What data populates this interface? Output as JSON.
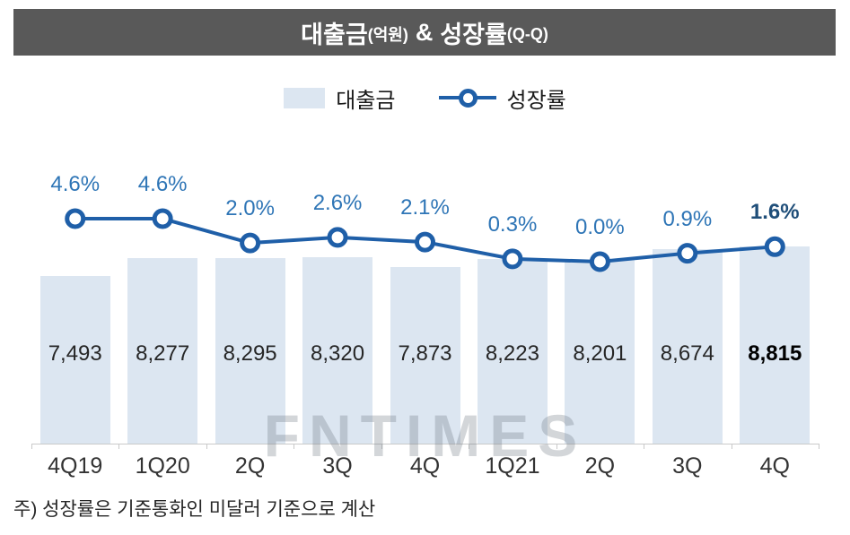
{
  "header": {
    "part1": "대출금",
    "part1_sub": "(억원)",
    "amp": "&",
    "part2": "성장률",
    "part2_sub": "(Q-Q)"
  },
  "legend": {
    "bar_label": "대출금",
    "line_label": "성장률"
  },
  "watermark": "FNTIMES",
  "footnote": "주) 성장률은 기준통화인 미달러 기준으로 계산",
  "chart_data": {
    "type": "bar+line",
    "title": "대출금(억원) & 성장률(Q-Q)",
    "categories": [
      "4Q19",
      "1Q20",
      "2Q",
      "3Q",
      "4Q",
      "1Q21",
      "2Q",
      "3Q",
      "4Q"
    ],
    "series": [
      {
        "name": "대출금",
        "type": "bar",
        "unit": "억원",
        "values": [
          7493,
          8277,
          8295,
          8320,
          7873,
          8223,
          8201,
          8674,
          8815
        ],
        "labels": [
          "7,493",
          "8,277",
          "8,295",
          "8,320",
          "7,873",
          "8,223",
          "8,201",
          "8,674",
          "8,815"
        ]
      },
      {
        "name": "성장률",
        "type": "line",
        "unit": "%",
        "values": [
          4.6,
          4.6,
          2.0,
          2.6,
          2.1,
          0.3,
          0.0,
          0.9,
          1.6
        ],
        "labels": [
          "4.6%",
          "4.6%",
          "2.0%",
          "2.6%",
          "2.1%",
          "0.3%",
          "0.0%",
          "0.9%",
          "1.6%"
        ]
      }
    ],
    "emphasize_last_point": true,
    "legend_position": "top",
    "grid": false,
    "colors": {
      "bar": "#dce6f1",
      "line": "#1f5fa8",
      "marker_fill": "#ffffff",
      "pct_label": "#2e75b6",
      "pct_label_last": "#1f4e79",
      "value_label": "#262626",
      "header_bg": "#595959",
      "header_text": "#ffffff",
      "axis": "#c9c9c9"
    }
  }
}
